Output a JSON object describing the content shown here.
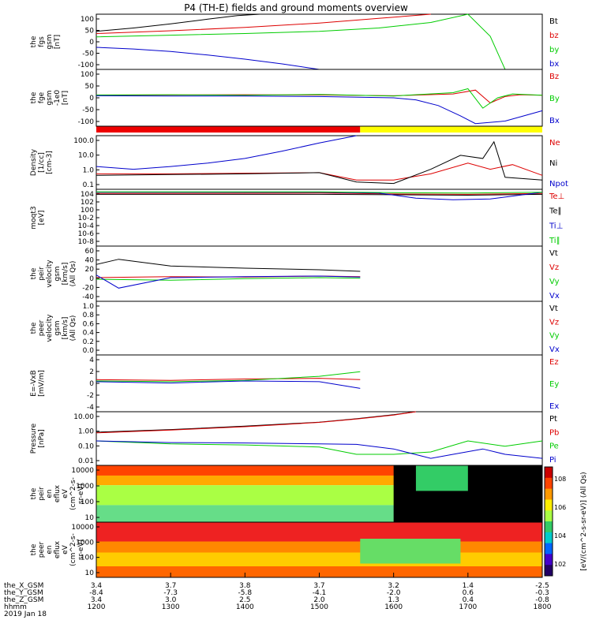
{
  "chart_data": {
    "type": "line",
    "title": "P4 (TH-E) fields and ground moments overview",
    "date_label": "2019 Jan 18",
    "time_ticks": [
      "1200",
      "1300",
      "1400",
      "1500",
      "1600",
      "1700",
      "1800"
    ],
    "ephemeris": [
      {
        "label": "the_X_GSM",
        "values": [
          "3.4",
          "3.7",
          "3.8",
          "3.7",
          "3.2",
          "1.4",
          "-2.5"
        ]
      },
      {
        "label": "the_Y_GSM",
        "values": [
          "-8.4",
          "-7.3",
          "-5.8",
          "-4.1",
          "-2.0",
          "0.6",
          "-0.3"
        ]
      },
      {
        "label": "the_Z_GSM",
        "values": [
          "3.4",
          "3.0",
          "2.5",
          "2.0",
          "1.3",
          "0.4",
          "-0.8"
        ]
      },
      {
        "label": "hhmm",
        "values": [
          "1200",
          "1300",
          "1400",
          "1500",
          "1600",
          "1700",
          "1800"
        ]
      }
    ],
    "panels": [
      {
        "id": "fgs",
        "ylabel": [
          "the",
          "fgs",
          "gsm",
          "[nT]"
        ],
        "yticks": [
          "100",
          "50",
          "0",
          "-50",
          "-100"
        ],
        "ylim": [
          -100,
          100
        ],
        "series": [
          {
            "name": "Bt",
            "color": "#000000",
            "x": [
              12.0,
              12.5,
              13.0,
              13.5,
              13.9,
              14.2
            ],
            "y": [
              38,
              50,
              65,
              82,
              95,
              100
            ]
          },
          {
            "name": "bz",
            "color": "#dd0000",
            "x": [
              12.0,
              13.0,
              14.0,
              15.0,
              15.8,
              16.5
            ],
            "y": [
              30,
              40,
              52,
              68,
              85,
              100
            ]
          },
          {
            "name": "by",
            "color": "#00cc00",
            "x": [
              12.0,
              13.0,
              14.0,
              15.0,
              15.8,
              16.5,
              17.0,
              17.3,
              17.5
            ],
            "y": [
              18,
              24,
              30,
              38,
              50,
              70,
              100,
              20,
              -100
            ]
          },
          {
            "name": "bx",
            "color": "#0000cc",
            "x": [
              12.0,
              12.5,
              13.0,
              13.5,
              14.0,
              14.5,
              15.0
            ],
            "y": [
              -20,
              -26,
              -35,
              -48,
              -63,
              -80,
              -100
            ]
          }
        ]
      },
      {
        "id": "fge",
        "ylabel": [
          "the",
          "fge",
          "gsm",
          "-1e0",
          "[nT]"
        ],
        "yticks": [
          "100",
          "50",
          "0",
          "-50",
          "-100"
        ],
        "ylim": [
          -120,
          100
        ],
        "series": [
          {
            "name": "Bz",
            "color": "#dd0000",
            "x": [
              12.0,
              13.0,
              14.0,
              15.0,
              16.0,
              16.8,
              17.1,
              17.3,
              17.5,
              17.7,
              18.0
            ],
            "y": [
              0,
              1,
              2,
              1,
              -2,
              5,
              20,
              -30,
              -5,
              2,
              0
            ]
          },
          {
            "name": "By",
            "color": "#00cc00",
            "x": [
              12.0,
              13.0,
              14.0,
              15.0,
              16.0,
              16.8,
              17.0,
              17.2,
              17.4,
              17.6,
              18.0
            ],
            "y": [
              1,
              2,
              0,
              3,
              -3,
              10,
              25,
              -50,
              -10,
              5,
              0
            ]
          },
          {
            "name": "Bx",
            "color": "#0000cc",
            "x": [
              12.0,
              13.0,
              14.0,
              15.0,
              16.0,
              16.3,
              16.6,
              16.9,
              17.1,
              17.5,
              18.0
            ],
            "y": [
              -2,
              -3,
              -3,
              -5,
              -10,
              -18,
              -40,
              -80,
              -110,
              -100,
              -60
            ]
          }
        ]
      },
      {
        "id": "density",
        "log": true,
        "ylabel": [
          "Density",
          "[1/cc]",
          "[cm-3]"
        ],
        "yticks": [
          "100.0",
          "10.0",
          "1.0",
          "0.1"
        ],
        "ylim": [
          0.05,
          150
        ],
        "series": [
          {
            "name": "Ne",
            "color": "#dd0000",
            "x": [
              12.0,
              13.0,
              14.0,
              15.0,
              15.5,
              16.0,
              16.5,
              17.0,
              17.3,
              17.6,
              18.0
            ],
            "y": [
              0.5,
              0.5,
              0.55,
              0.6,
              0.2,
              0.2,
              0.5,
              2.5,
              1.0,
              2.0,
              0.4
            ]
          },
          {
            "name": "Ni",
            "color": "#000000",
            "x": [
              12.0,
              13.0,
              14.0,
              15.0,
              15.5,
              16.0,
              16.5,
              16.9,
              17.2,
              17.35,
              17.5,
              18.0
            ],
            "y": [
              0.4,
              0.45,
              0.5,
              0.6,
              0.15,
              0.12,
              1.0,
              8.0,
              5.0,
              60.0,
              0.3,
              0.2
            ]
          },
          {
            "name": "Npot",
            "color": "#0000cc",
            "x": [
              12.0,
              12.5,
              13.0,
              13.5,
              14.0,
              14.5,
              15.0,
              15.5
            ],
            "y": [
              1.5,
              1.0,
              1.5,
              2.5,
              5.0,
              15.0,
              50.0,
              150.0
            ]
          }
        ]
      },
      {
        "id": "temperature",
        "log": true,
        "ylabel": [
          "moqt3",
          "[eV]"
        ],
        "yticks": [
          "10^4",
          "10^2",
          "10^0",
          "10^-2",
          "10^-4",
          "10^-6",
          "10^-8"
        ],
        "ylim": [
          -9,
          4.5
        ],
        "series": [
          {
            "name": "Te⊥",
            "color": "#dd0000",
            "x": [
              12.0,
              15.0,
              16.0,
              17.0,
              18.0
            ],
            "y": [
              3.5,
              3.6,
              3.4,
              3.3,
              3.5
            ]
          },
          {
            "name": "Te∥",
            "color": "#000000",
            "x": [
              12.0,
              15.0,
              16.0,
              17.0,
              18.0
            ],
            "y": [
              3.3,
              3.3,
              3.2,
              3.1,
              3.3
            ]
          },
          {
            "name": "Ti⊥",
            "color": "#0000cc",
            "x": [
              12.0,
              15.0,
              15.8,
              16.3,
              16.8,
              17.3,
              18.0
            ],
            "y": [
              3.8,
              3.8,
              3.6,
              2.4,
              2.0,
              2.2,
              3.8
            ]
          },
          {
            "name": "Ti∥",
            "color": "#00cc00",
            "x": [
              12.0,
              15.0,
              16.0,
              17.0,
              18.0
            ],
            "y": [
              3.9,
              3.9,
              3.7,
              3.6,
              3.8
            ]
          }
        ]
      },
      {
        "id": "peir_velocity",
        "ylabel": [
          "the",
          "peir",
          "velocity",
          "gsm",
          "[km/s]",
          "(All Qs)"
        ],
        "yticks": [
          "60",
          "40",
          "20",
          "0",
          "-20",
          "-40"
        ],
        "ylim": [
          -45,
          60
        ],
        "series": [
          {
            "name": "Vt",
            "color": "#000000",
            "x": [
              12.0,
              12.3,
              13.0,
              14.0,
              15.0,
              15.55
            ],
            "y": [
              25,
              35,
              22,
              18,
              15,
              12
            ]
          },
          {
            "name": "Vz",
            "color": "#dd0000",
            "x": [
              12.0,
              13.0,
              14.0,
              15.0,
              15.55
            ],
            "y": [
              0,
              2,
              1,
              3,
              2
            ]
          },
          {
            "name": "Vy",
            "color": "#00cc00",
            "x": [
              12.0,
              13.0,
              14.0,
              15.0,
              15.55
            ],
            "y": [
              -3,
              -5,
              -2,
              0,
              -1
            ]
          },
          {
            "name": "Vx",
            "color": "#0000cc",
            "x": [
              12.0,
              12.3,
              13.0,
              14.0,
              15.0,
              15.55
            ],
            "y": [
              5,
              -20,
              0,
              2,
              3,
              1
            ]
          }
        ]
      },
      {
        "id": "peer_velocity",
        "ylabel": [
          "the",
          "peer",
          "velocity",
          "gsm",
          "[km/s]",
          "(All Qs)"
        ],
        "yticks": [
          "1.0",
          "0.8",
          "0.6",
          "0.4",
          "0.2",
          "0.0"
        ],
        "ylim": [
          0,
          1
        ],
        "series": [
          {
            "name": "Vt",
            "color": "#000000",
            "x": [],
            "y": []
          },
          {
            "name": "Vz",
            "color": "#dd0000",
            "x": [],
            "y": []
          },
          {
            "name": "Vy",
            "color": "#00cc00",
            "x": [],
            "y": []
          },
          {
            "name": "Vx",
            "color": "#0000cc",
            "x": [],
            "y": []
          }
        ]
      },
      {
        "id": "efield",
        "ylabel": [
          "E=-VxB",
          "[mV/m]"
        ],
        "yticks": [
          "4",
          "2",
          "0",
          "-2",
          "-4"
        ],
        "ylim": [
          -4.5,
          4
        ],
        "series": [
          {
            "name": "Ez",
            "color": "#dd0000",
            "x": [
              12.0,
              13.0,
              14.0,
              15.0,
              15.55
            ],
            "y": [
              0.3,
              0.2,
              0.4,
              0.5,
              0.3
            ]
          },
          {
            "name": "Ey",
            "color": "#00cc00",
            "x": [
              12.0,
              13.0,
              14.0,
              15.0,
              15.55
            ],
            "y": [
              0.1,
              0.0,
              0.2,
              0.8,
              1.5
            ]
          },
          {
            "name": "Ex",
            "color": "#0000cc",
            "x": [
              12.0,
              13.0,
              14.0,
              15.0,
              15.55
            ],
            "y": [
              0.0,
              -0.2,
              0.1,
              0.0,
              -1.0
            ]
          }
        ]
      },
      {
        "id": "pressure",
        "log": true,
        "ylabel": [
          "Pressure",
          "[nPa]"
        ],
        "yticks": [
          "10.00",
          "1.00",
          "0.10",
          "0.01"
        ],
        "ylim": [
          0.003,
          30
        ],
        "series": [
          {
            "name": "Pt",
            "color": "#000000",
            "x": [
              12.0,
              13.0,
              14.0,
              15.0,
              15.5,
              16.0,
              16.3
            ],
            "y": [
              0.9,
              1.4,
              2.5,
              5.0,
              9.0,
              18.0,
              30.0
            ]
          },
          {
            "name": "Pb",
            "color": "#dd0000",
            "x": [
              12.0,
              13.0,
              14.0,
              15.0,
              15.5,
              16.0,
              16.3
            ],
            "y": [
              0.8,
              1.3,
              2.3,
              4.8,
              8.5,
              17.0,
              30.0
            ]
          },
          {
            "name": "Pe",
            "color": "#00cc00",
            "x": [
              12.0,
              13.0,
              14.0,
              15.0,
              15.5,
              16.0,
              16.5,
              17.0,
              17.5,
              18.0
            ],
            "y": [
              0.2,
              0.12,
              0.1,
              0.07,
              0.02,
              0.02,
              0.03,
              0.2,
              0.08,
              0.2
            ]
          },
          {
            "name": "Pi",
            "color": "#0000cc",
            "x": [
              12.0,
              13.0,
              14.0,
              15.0,
              15.5,
              16.0,
              16.5,
              16.8,
              17.2,
              17.5,
              18.0
            ],
            "y": [
              0.2,
              0.15,
              0.14,
              0.12,
              0.11,
              0.05,
              0.01,
              0.02,
              0.05,
              0.02,
              0.01
            ]
          }
        ]
      },
      {
        "id": "peir_spec",
        "type": "heatmap",
        "ylabel": [
          "the",
          "peir",
          "en",
          "eflux",
          "eV",
          "(cm^2-s-",
          "sr-eV)"
        ],
        "yticks": [
          "10000",
          "1000",
          "100",
          "10"
        ]
      },
      {
        "id": "peer_spec",
        "type": "heatmap",
        "ylabel": [
          "the",
          "peer",
          "en",
          "eflux",
          "eV",
          "(cm^2-s-",
          "sr-eV)"
        ],
        "yticks": [
          "10000",
          "1000",
          "100",
          "10"
        ]
      }
    ],
    "colorbar": {
      "label": "[eV/(cm^2-s-sr-eV)] (All Qs)",
      "ticks": [
        "10^8",
        "10^6",
        "10^4",
        "10^2"
      ]
    }
  }
}
